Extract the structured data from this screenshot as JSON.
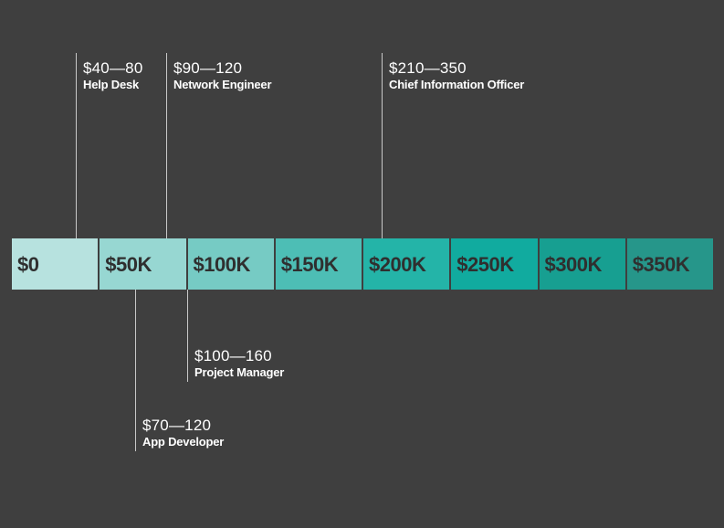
{
  "scale": {
    "segments": [
      {
        "label": "$0",
        "color": "#b7e2df"
      },
      {
        "label": "$50K",
        "color": "#97d7d2"
      },
      {
        "label": "$100K",
        "color": "#76cbc4"
      },
      {
        "label": "$150K",
        "color": "#4dbeb5"
      },
      {
        "label": "$200K",
        "color": "#24b4a8"
      },
      {
        "label": "$250K",
        "color": "#11ab9f"
      },
      {
        "label": "$300K",
        "color": "#179f91"
      },
      {
        "label": "$350K",
        "color": "#26968a"
      }
    ]
  },
  "roles": [
    {
      "range": "$40—80",
      "title": "Help Desk",
      "position": "above"
    },
    {
      "range": "$90—120",
      "title": "Network Engineer",
      "position": "above"
    },
    {
      "range": "$210—350",
      "title": "Chief Information Officer",
      "position": "above"
    },
    {
      "range": "$100—160",
      "title": "Project Manager",
      "position": "below"
    },
    {
      "range": "$70—120",
      "title": "App Developer",
      "position": "below"
    }
  ]
}
